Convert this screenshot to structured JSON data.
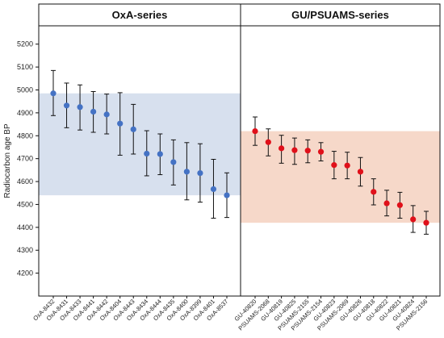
{
  "chart_data": {
    "type": "scatter",
    "ylabel": "Radiocarbon age BP",
    "ylim": [
      4100,
      5280
    ],
    "yticks": [
      4200,
      4300,
      4400,
      4500,
      4600,
      4700,
      4800,
      4900,
      5000,
      5100,
      5200
    ],
    "panels": [
      {
        "title": "OxA-series",
        "color": "#4472c4",
        "band_color": "#d7e0ee",
        "band": [
          4540,
          4985
        ],
        "points": [
          {
            "label": "OxA-8432",
            "value": 4985,
            "low": 4888,
            "high": 5085
          },
          {
            "label": "OxA-8431",
            "value": 4932,
            "low": 4835,
            "high": 5030
          },
          {
            "label": "OxA-8433",
            "value": 4925,
            "low": 4825,
            "high": 5022
          },
          {
            "label": "OxA-8441",
            "value": 4905,
            "low": 4815,
            "high": 4993
          },
          {
            "label": "OxA-8442",
            "value": 4893,
            "low": 4808,
            "high": 4982
          },
          {
            "label": "OxA-8404",
            "value": 4853,
            "low": 4715,
            "high": 4988
          },
          {
            "label": "OxA-8443",
            "value": 4828,
            "low": 4720,
            "high": 4937
          },
          {
            "label": "OxA-8434",
            "value": 4722,
            "low": 4625,
            "high": 4822
          },
          {
            "label": "OxA-8444",
            "value": 4720,
            "low": 4630,
            "high": 4808
          },
          {
            "label": "OxA-8435",
            "value": 4685,
            "low": 4585,
            "high": 4782
          },
          {
            "label": "OxA-8400",
            "value": 4643,
            "low": 4520,
            "high": 4770
          },
          {
            "label": "OxA-8399",
            "value": 4637,
            "low": 4510,
            "high": 4765
          },
          {
            "label": "OxA-8401",
            "value": 4567,
            "low": 4440,
            "high": 4697
          },
          {
            "label": "OxA-8537",
            "value": 4540,
            "low": 4443,
            "high": 4638
          }
        ]
      },
      {
        "title": "GU/PSUAMS-series",
        "color": "#e0101a",
        "band_color": "#f6d8c9",
        "band": [
          4420,
          4820
        ],
        "points": [
          {
            "label": "GU-40820",
            "value": 4820,
            "low": 4758,
            "high": 4882
          },
          {
            "label": "PSUAMS-2068",
            "value": 4772,
            "low": 4712,
            "high": 4830
          },
          {
            "label": "GU-40819",
            "value": 4745,
            "low": 4680,
            "high": 4802
          },
          {
            "label": "GU-40825",
            "value": 4737,
            "low": 4675,
            "high": 4790
          },
          {
            "label": "PSUAMS-2155",
            "value": 4735,
            "low": 4682,
            "high": 4782
          },
          {
            "label": "PSUAMS-2154",
            "value": 4730,
            "low": 4690,
            "high": 4770
          },
          {
            "label": "GU-40823",
            "value": 4672,
            "low": 4612,
            "high": 4732
          },
          {
            "label": "PSUAMS-2069",
            "value": 4670,
            "low": 4612,
            "high": 4728
          },
          {
            "label": "GU-40826",
            "value": 4643,
            "low": 4580,
            "high": 4705
          },
          {
            "label": "GU-40818",
            "value": 4555,
            "low": 4498,
            "high": 4612
          },
          {
            "label": "GU-40822",
            "value": 4505,
            "low": 4450,
            "high": 4562
          },
          {
            "label": "GU-40821",
            "value": 4497,
            "low": 4440,
            "high": 4553
          },
          {
            "label": "GU-40824",
            "value": 4435,
            "low": 4378,
            "high": 4495
          },
          {
            "label": "PSUAMS-2156",
            "value": 4420,
            "low": 4370,
            "high": 4470
          }
        ]
      }
    ]
  }
}
